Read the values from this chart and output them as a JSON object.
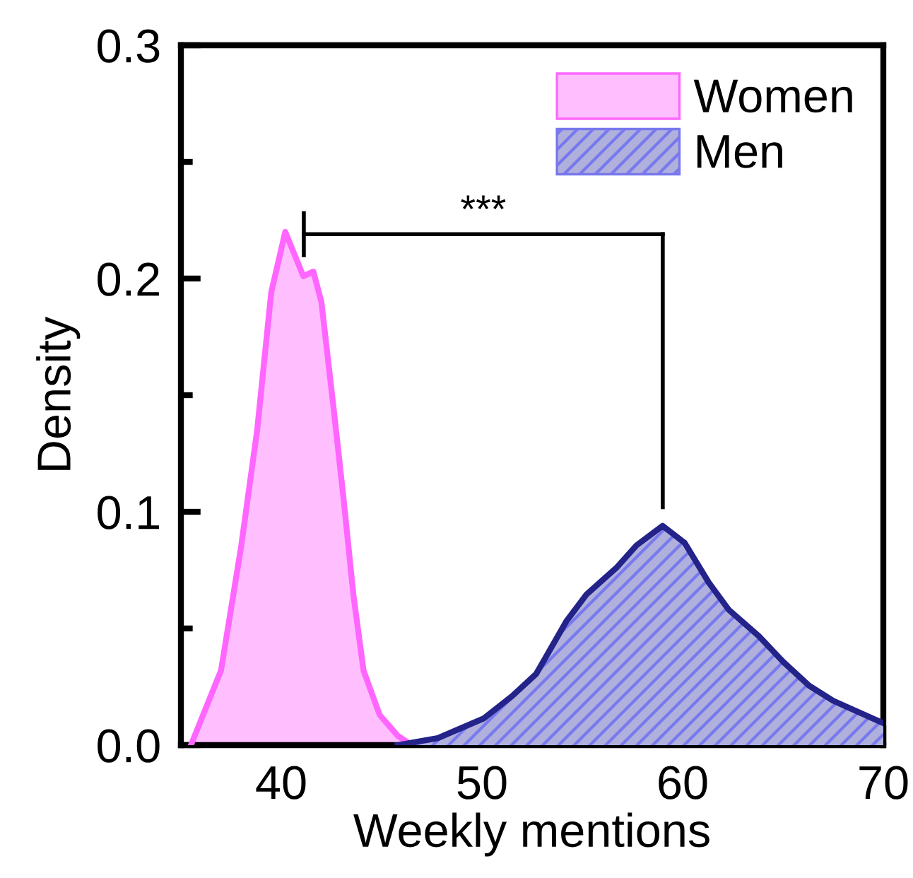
{
  "chart_data": {
    "type": "area",
    "xlabel": "Weekly mentions",
    "ylabel": "Density",
    "xlim": [
      35,
      70
    ],
    "ylim": [
      0,
      0.3
    ],
    "xticks": [
      40,
      {
        "value": 45,
        "label": null
      },
      50,
      {
        "value": 55,
        "label": null
      },
      60,
      {
        "value": 65,
        "label": null
      },
      70
    ],
    "yticks": [
      {
        "value": 0,
        "label": "0.0"
      },
      {
        "value": 0.05,
        "label": null
      },
      0.1,
      {
        "value": 0.15,
        "label": null
      },
      0.2,
      {
        "value": 0.25,
        "label": null
      },
      0.3
    ],
    "legend": "top right",
    "grid": false,
    "annotations": [
      "***"
    ],
    "series": [
      {
        "name": "Women",
        "color": "#ff66ff",
        "x": [
          35.5,
          37.0,
          38.0,
          38.8,
          39.5,
          40.2,
          41.1,
          41.6,
          42.0,
          42.6,
          43.1,
          43.6,
          44.1,
          44.9,
          45.8,
          46.5
        ],
        "values": [
          0,
          0.032,
          0.085,
          0.135,
          0.194,
          0.22,
          0.201,
          0.203,
          0.19,
          0.145,
          0.106,
          0.064,
          0.032,
          0.013,
          0.004,
          0
        ]
      },
      {
        "name": "Men",
        "color": "#23238a",
        "x": [
          45.8,
          47.8,
          50.1,
          51.5,
          52.7,
          54.2,
          55.2,
          56.7,
          57.7,
          59.0,
          60.1,
          61.3,
          62.3,
          63.8,
          65.0,
          66.3,
          67.5,
          70.0
        ],
        "values": [
          0,
          0.003,
          0.0115,
          0.021,
          0.0305,
          0.053,
          0.0645,
          0.076,
          0.0856,
          0.094,
          0.0867,
          0.0697,
          0.058,
          0.0467,
          0.0358,
          0.0255,
          0.019,
          0.0094
        ]
      }
    ]
  }
}
